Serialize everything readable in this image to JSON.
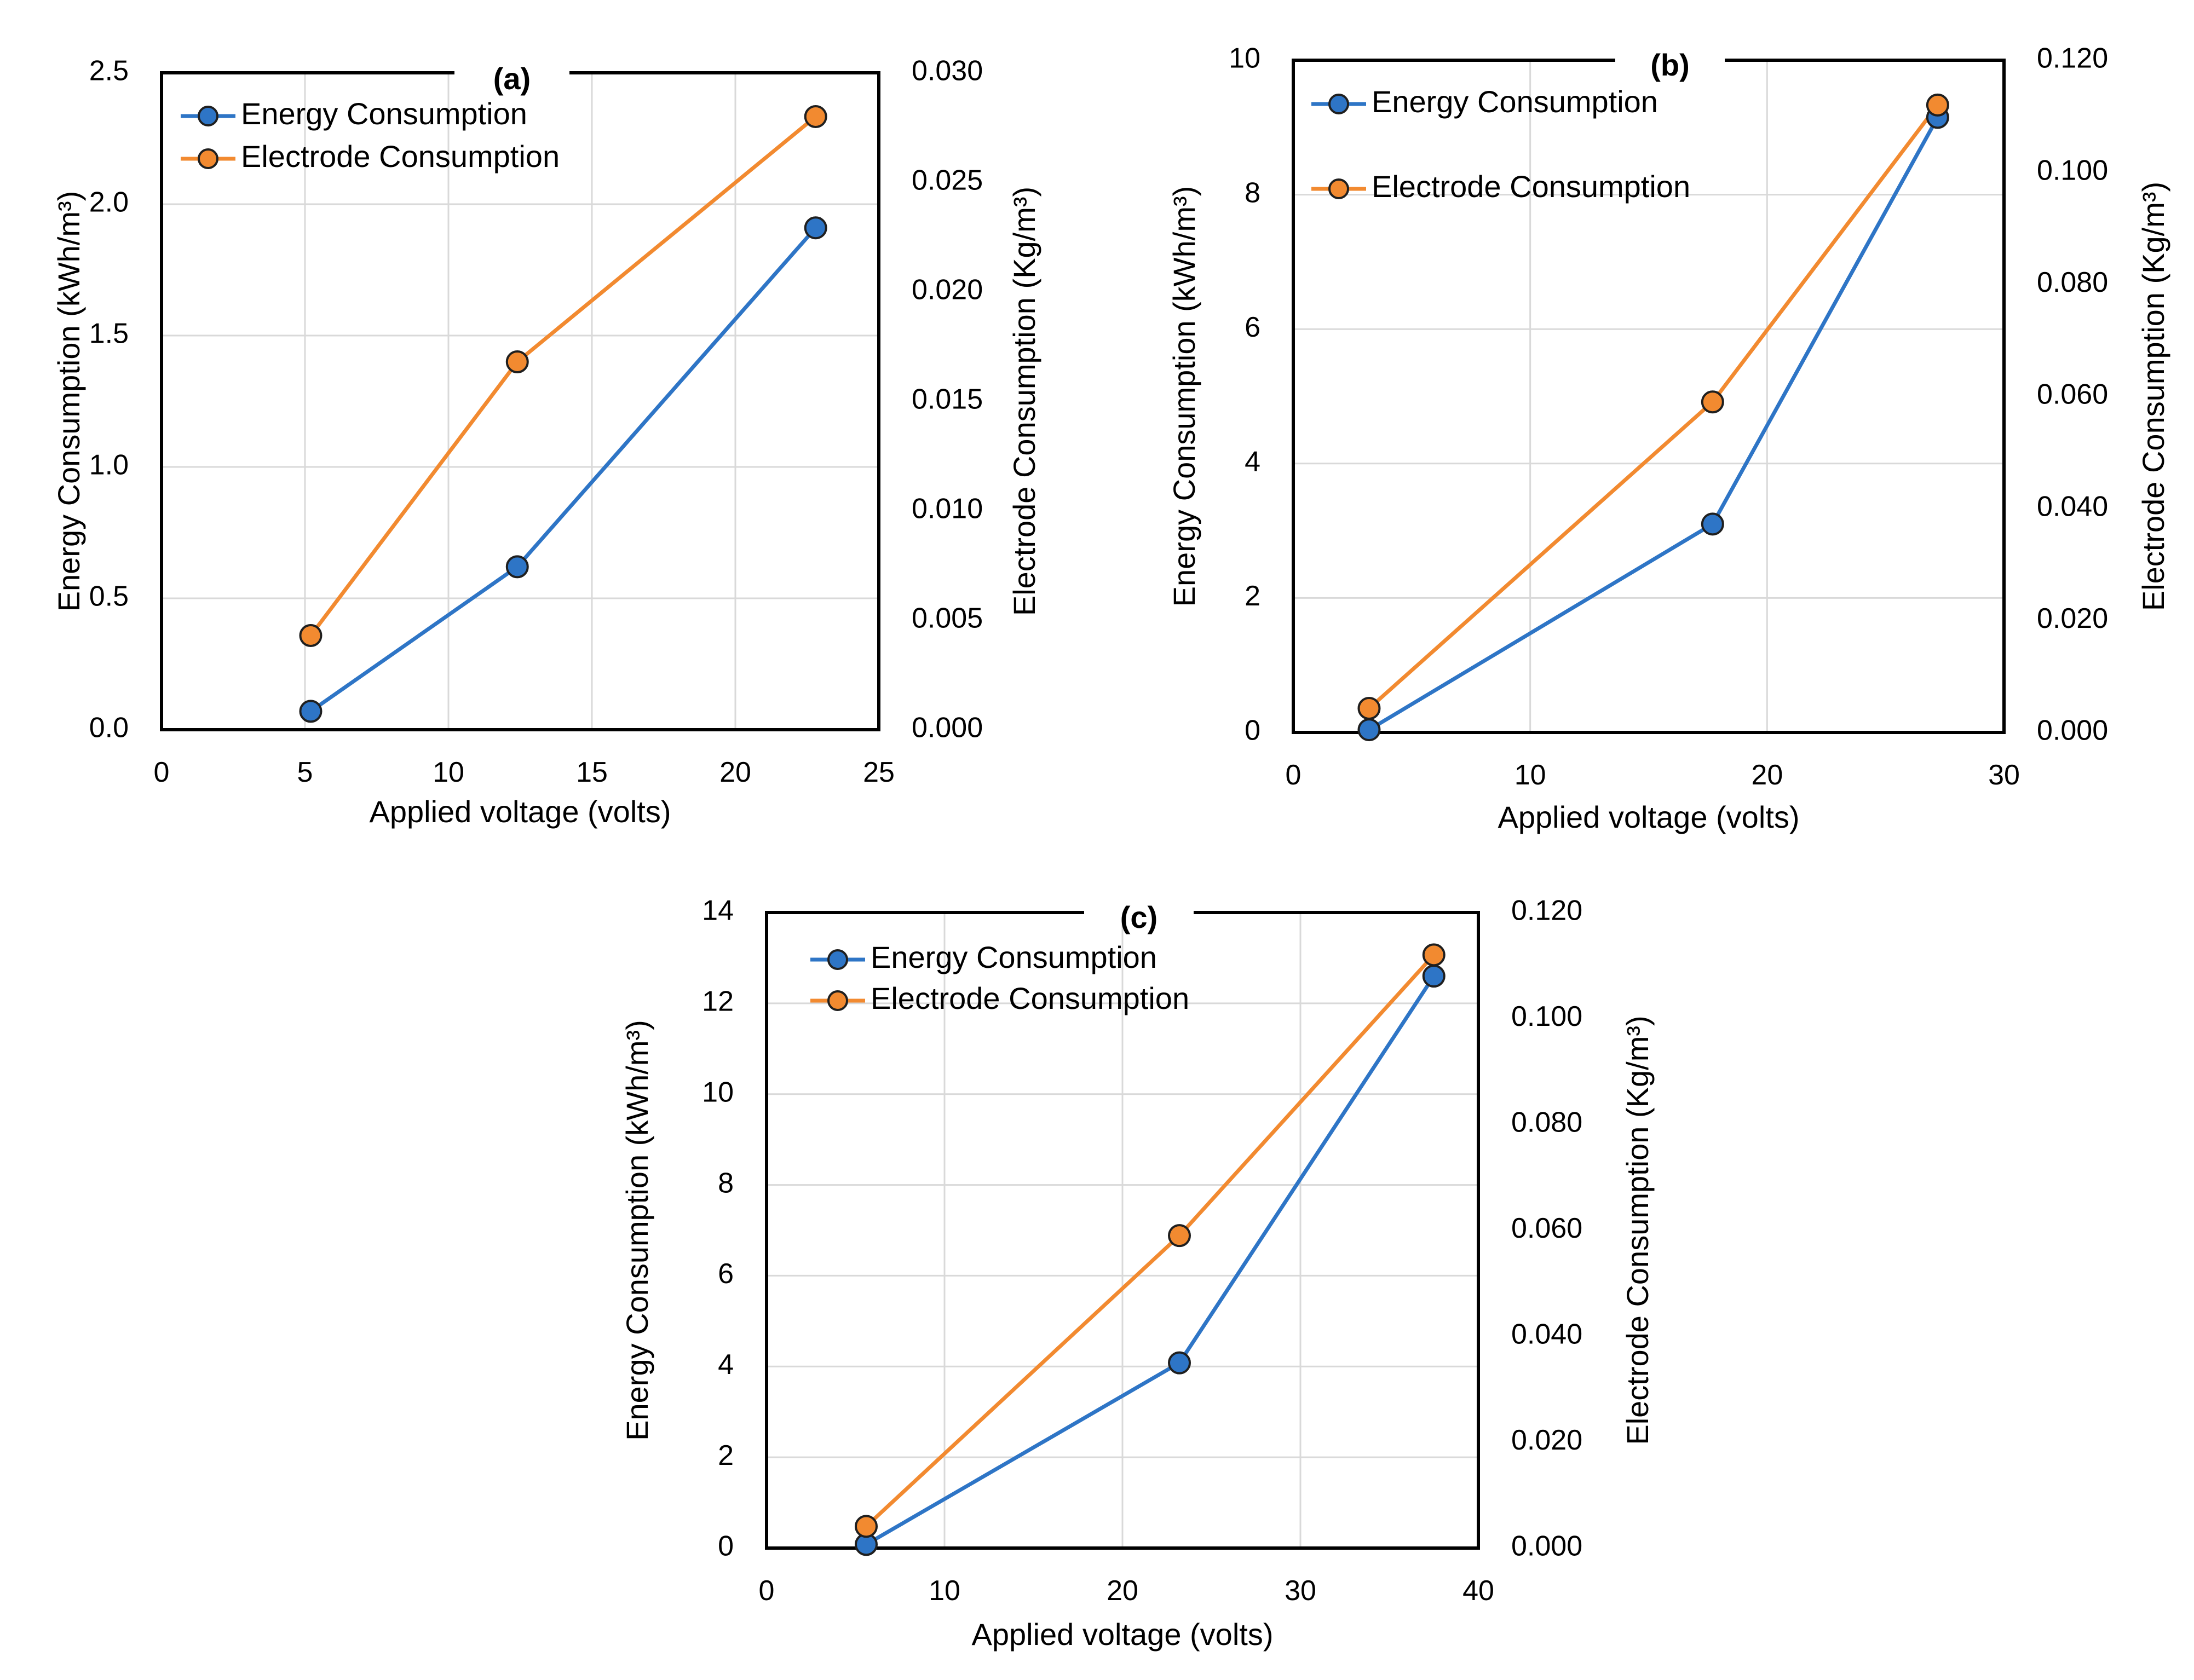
{
  "colors": {
    "energy": "#2e75c6",
    "electrode": "#f28a30"
  },
  "chart_data": [
    {
      "type": "line",
      "title": "(a)",
      "xlabel": "Applied voltage (volts)",
      "ylabel_left": "Energy Consumption (kWh/m³)",
      "ylabel_right": "Electrode Consumption (Kg/m³)",
      "xlim": [
        0,
        25
      ],
      "ylim_left": [
        0,
        2.5
      ],
      "ylim_right": [
        0,
        0.03
      ],
      "x_ticks": [
        "0",
        "5",
        "10",
        "15",
        "20",
        "25"
      ],
      "y_left_ticks": [
        "0.0",
        "0.5",
        "1.0",
        "1.5",
        "2.0",
        "2.5"
      ],
      "y_right_ticks": [
        "0.000",
        "0.005",
        "0.010",
        "0.015",
        "0.020",
        "0.025",
        "0.030"
      ],
      "legend": "top-left",
      "series": [
        {
          "name": "Energy Consumption",
          "axis": "left",
          "x": [
            5.2,
            12.4,
            22.8
          ],
          "y": [
            0.07,
            0.62,
            1.91
          ]
        },
        {
          "name": "Electrode Consumption",
          "axis": "right",
          "x": [
            5.2,
            12.4,
            22.8
          ],
          "y": [
            0.0043,
            0.0168,
            0.028
          ]
        }
      ]
    },
    {
      "type": "line",
      "title": "(b)",
      "xlabel": "Applied voltage (volts)",
      "ylabel_left": "Energy Consumption (kWh/m³)",
      "ylabel_right": "Electrode Consumption (Kg/m³)",
      "xlim": [
        0,
        30
      ],
      "ylim_left": [
        0,
        10
      ],
      "ylim_right": [
        0,
        0.12
      ],
      "x_ticks": [
        "0",
        "10",
        "20",
        "30"
      ],
      "y_left_ticks": [
        "0",
        "2",
        "4",
        "6",
        "8",
        "10"
      ],
      "y_right_ticks": [
        "0.000",
        "0.020",
        "0.040",
        "0.060",
        "0.080",
        "0.100",
        "0.120"
      ],
      "legend": "top-left",
      "series": [
        {
          "name": "Energy Consumption",
          "axis": "left",
          "x": [
            3.2,
            17.7,
            27.2
          ],
          "y": [
            0.04,
            3.1,
            9.15
          ]
        },
        {
          "name": "Electrode Consumption",
          "axis": "right",
          "x": [
            3.2,
            17.7,
            27.2
          ],
          "y": [
            0.0043,
            0.059,
            0.112
          ]
        }
      ]
    },
    {
      "type": "line",
      "title": "(c)",
      "xlabel": "Applied voltage (volts)",
      "ylabel_left": "Energy Consumption (kWh/m³)",
      "ylabel_right": "Electrode Consumption (Kg/m³)",
      "xlim": [
        0,
        40
      ],
      "ylim_left": [
        0,
        14
      ],
      "ylim_right": [
        0,
        0.12
      ],
      "x_ticks": [
        "0",
        "10",
        "20",
        "30",
        "40"
      ],
      "y_left_ticks": [
        "0",
        "2",
        "4",
        "6",
        "8",
        "10",
        "12",
        "14"
      ],
      "y_right_ticks": [
        "0.000",
        "0.020",
        "0.040",
        "0.060",
        "0.080",
        "0.100",
        "0.120"
      ],
      "legend": "top-left",
      "series": [
        {
          "name": "Energy Consumption",
          "axis": "left",
          "x": [
            5.6,
            23.2,
            37.5
          ],
          "y": [
            0.08,
            4.08,
            12.6
          ]
        },
        {
          "name": "Electrode Consumption",
          "axis": "right",
          "x": [
            5.6,
            23.2,
            37.5
          ],
          "y": [
            0.0041,
            0.059,
            0.112
          ]
        }
      ]
    }
  ]
}
